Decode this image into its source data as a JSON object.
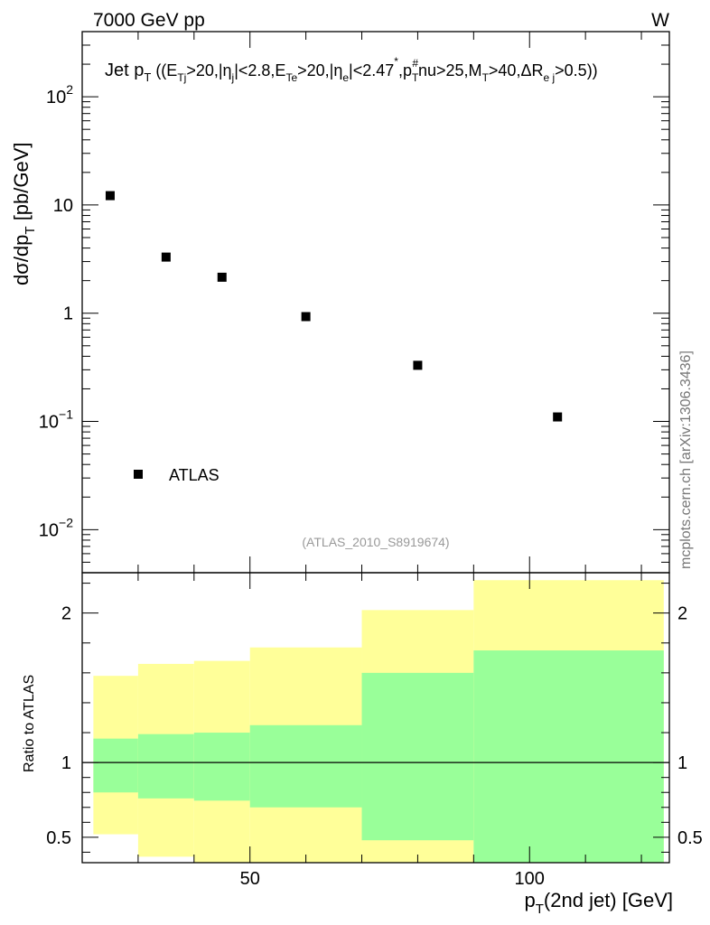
{
  "header": {
    "left": "7000 GeV pp",
    "right": "W"
  },
  "side_label": "mcplots.cern.ch [arXiv:1306.3436]",
  "analysis_id": "(ATLAS_2010_S8919674)",
  "colors": {
    "band_outer": "#ffff99",
    "band_inner": "#99ff99",
    "marker": "#000000",
    "frame": "#000000"
  },
  "chart_data": [
    {
      "type": "scatter",
      "title_parts": {
        "t1": "Jet p",
        "s1": "T",
        "t2": " ((E",
        "s2": "Tj",
        "t3": ">20,|η",
        "s3": "j",
        "t4": "|<2.8,E",
        "s4": "Te",
        "t5": ">20,|η",
        "s5": "e",
        "t6": "|<2.47",
        "sup6": "*",
        "t7": ",p",
        "s7": "T",
        "sup7": "#",
        "t8": "nu>25,M",
        "s8": "T",
        "t9": ">40,ΔR",
        "s9": "e j",
        "t10": ">0.5))"
      },
      "ylabel_parts": {
        "t1": "dσ/dp",
        "s1": "T",
        "t2": " [pb/GeV]"
      },
      "yscale": "log",
      "ylim": [
        0.004,
        400
      ],
      "xlim": [
        20,
        125
      ],
      "y_ticks": [
        {
          "value": 0.01,
          "base": "10",
          "exp": "−2"
        },
        {
          "value": 0.1,
          "base": "10",
          "exp": "−1"
        },
        {
          "value": 1,
          "base": "1",
          "exp": ""
        },
        {
          "value": 10,
          "base": "10",
          "exp": ""
        },
        {
          "value": 100,
          "base": "10",
          "exp": "2"
        }
      ],
      "series": [
        {
          "name": "ATLAS",
          "x": [
            25,
            35,
            45,
            60,
            80,
            105
          ],
          "y": [
            12.2,
            3.3,
            2.15,
            0.93,
            0.33,
            0.11
          ]
        }
      ],
      "legend": {
        "position": "bottom-left",
        "label": "ATLAS"
      }
    },
    {
      "type": "area",
      "ylabel": "Ratio to ATLAS",
      "xlabel_parts": {
        "t1": "p",
        "s1": "T",
        "t2": "(2nd jet) [GeV]"
      },
      "xlim": [
        20,
        125
      ],
      "ylim": [
        0.33,
        2.27
      ],
      "x_ticks": [
        50,
        100
      ],
      "y_ticks": [
        0.5,
        1,
        2
      ],
      "reference_line": 1,
      "bins": [
        {
          "lo": 22,
          "hi": 30,
          "inner_lo": 0.8,
          "inner_hi": 1.16,
          "outer_lo": 0.52,
          "outer_hi": 1.58
        },
        {
          "lo": 30,
          "hi": 40,
          "inner_lo": 0.76,
          "inner_hi": 1.19,
          "outer_lo": 0.37,
          "outer_hi": 1.66
        },
        {
          "lo": 40,
          "hi": 50,
          "inner_lo": 0.745,
          "inner_hi": 1.2,
          "outer_lo": 0.33,
          "outer_hi": 1.68
        },
        {
          "lo": 50,
          "hi": 70,
          "inner_lo": 0.7,
          "inner_hi": 1.25,
          "outer_lo": 0.33,
          "outer_hi": 1.77
        },
        {
          "lo": 70,
          "hi": 90,
          "inner_lo": 0.48,
          "inner_hi": 1.6,
          "outer_lo": 0.33,
          "outer_hi": 2.02
        },
        {
          "lo": 90,
          "hi": 124,
          "inner_lo": 0.33,
          "inner_hi": 1.75,
          "outer_lo": 0.33,
          "outer_hi": 2.22
        }
      ]
    }
  ]
}
